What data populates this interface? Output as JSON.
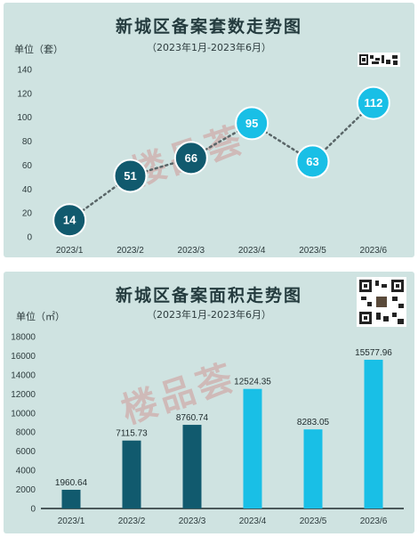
{
  "charts": [
    {
      "title": "新城区备案套数走势图",
      "subtitle": "（2023年1月-2023年6月）",
      "unit": "单位（套）",
      "watermark": "楼品荟",
      "chart_data": {
        "type": "scatter",
        "categories": [
          "2023/1",
          "2023/2",
          "2023/3",
          "2023/4",
          "2023/5",
          "2023/6"
        ],
        "values": [
          14,
          51,
          66,
          95,
          63,
          112
        ],
        "value_labels": [
          "14",
          "51",
          "66",
          "95",
          "63",
          "112"
        ],
        "yticks": [
          "0",
          "20",
          "40",
          "60",
          "80",
          "100",
          "120",
          "140"
        ],
        "ylim": [
          0,
          140
        ],
        "grid": false,
        "trend_line": "dotted",
        "point_colors": [
          "#115a6e",
          "#115a6e",
          "#115a6e",
          "#19bfe6",
          "#19bfe6",
          "#19bfe6"
        ]
      }
    },
    {
      "title": "新城区备案面积走势图",
      "subtitle": "（2023年1月-2023年6月）",
      "unit": "单位（㎡）",
      "watermark": "楼品荟",
      "chart_data": {
        "type": "bar",
        "categories": [
          "2023/1",
          "2023/2",
          "2023/3",
          "2023/4",
          "2023/5",
          "2023/6"
        ],
        "values": [
          1960.64,
          7115.73,
          8760.74,
          12524.35,
          8283.05,
          15577.96
        ],
        "value_labels": [
          "1960.64",
          "7115.73",
          "8760.74",
          "12524.35",
          "8283.05",
          "15577.96"
        ],
        "yticks": [
          "0",
          "2000",
          "4000",
          "6000",
          "8000",
          "10000",
          "12000",
          "14000",
          "16000",
          "18000"
        ],
        "ylim": [
          0,
          18000
        ],
        "grid": false,
        "bar_colors": [
          "#115a6e",
          "#115a6e",
          "#115a6e",
          "#19bfe6",
          "#19bfe6",
          "#19bfe6"
        ]
      }
    }
  ]
}
